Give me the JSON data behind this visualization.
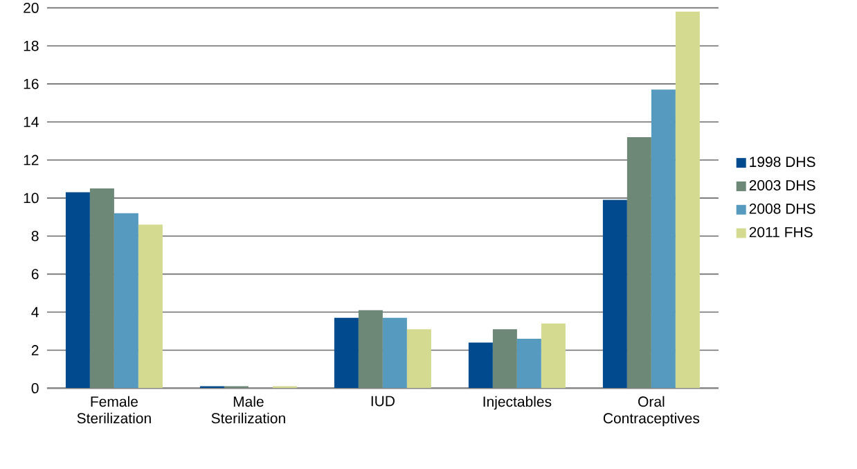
{
  "chart_data": {
    "type": "bar",
    "categories": [
      "Female Sterilization",
      "Male Sterilization",
      "IUD",
      "Injectables",
      "Oral Contraceptives"
    ],
    "series": [
      {
        "name": "1998 DHS",
        "color": "#004a8d",
        "values": [
          10.3,
          0.1,
          3.7,
          2.4,
          9.9
        ]
      },
      {
        "name": "2003 DHS",
        "color": "#6e8878",
        "values": [
          10.5,
          0.1,
          4.1,
          3.1,
          13.2
        ]
      },
      {
        "name": "2008 DHS",
        "color": "#569bbf",
        "values": [
          9.2,
          0,
          3.7,
          2.6,
          15.7
        ]
      },
      {
        "name": "2011 FHS",
        "color": "#d4db90",
        "values": [
          8.6,
          0.1,
          3.1,
          3.4,
          19.8
        ]
      }
    ],
    "ylim": [
      0,
      20
    ],
    "yticks": [
      0,
      2,
      4,
      6,
      8,
      10,
      12,
      14,
      16,
      18,
      20
    ],
    "grid": "y",
    "legend": "right"
  }
}
